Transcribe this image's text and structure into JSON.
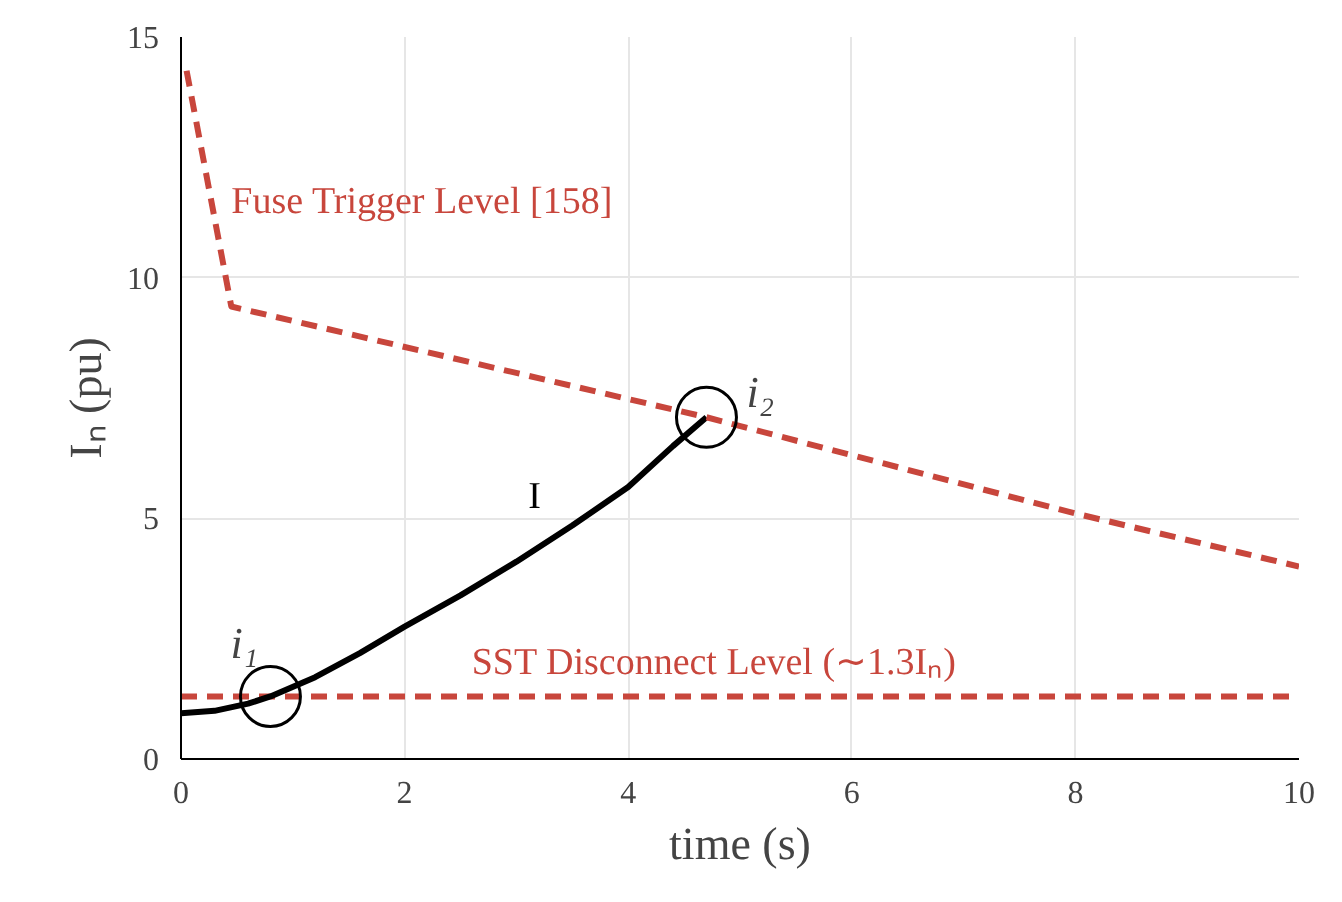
{
  "chart_data": {
    "type": "line",
    "xlabel": "time (s)",
    "ylabel": "Iₙ (pu)",
    "xlim": [
      0,
      10
    ],
    "ylim": [
      0,
      15
    ],
    "xticks": [
      0,
      2,
      4,
      6,
      8,
      10
    ],
    "yticks": [
      0,
      5,
      10,
      15
    ],
    "grid": true,
    "series": [
      {
        "name": "I",
        "color": "#000000",
        "line_style": "solid",
        "x": [
          0,
          0.3,
          0.6,
          0.8,
          1.2,
          1.6,
          2,
          2.5,
          3,
          3.5,
          4,
          4.4,
          4.7
        ],
        "values": [
          0.95,
          1.0,
          1.15,
          1.3,
          1.7,
          2.2,
          2.75,
          3.4,
          4.1,
          4.85,
          5.65,
          6.5,
          7.1
        ]
      },
      {
        "name": "Fuse Trigger Level [158]",
        "color": "#c8463c",
        "line_style": "dashed",
        "x": [
          0.05,
          0.45,
          4.7,
          8,
          10
        ],
        "values": [
          14.3,
          9.4,
          7.1,
          5.1,
          4.0
        ]
      }
    ],
    "ref_lines": [
      {
        "axis": "y",
        "value": 1.3,
        "label": "SST Disconnect Level (∼1.3Iₙ)",
        "color": "#c8463c",
        "line_style": "dashed"
      }
    ],
    "annotations": [
      {
        "text": "i₁",
        "x": 0.8,
        "y": 1.3
      },
      {
        "text": "i₂",
        "x": 4.7,
        "y": 7.1
      }
    ]
  }
}
